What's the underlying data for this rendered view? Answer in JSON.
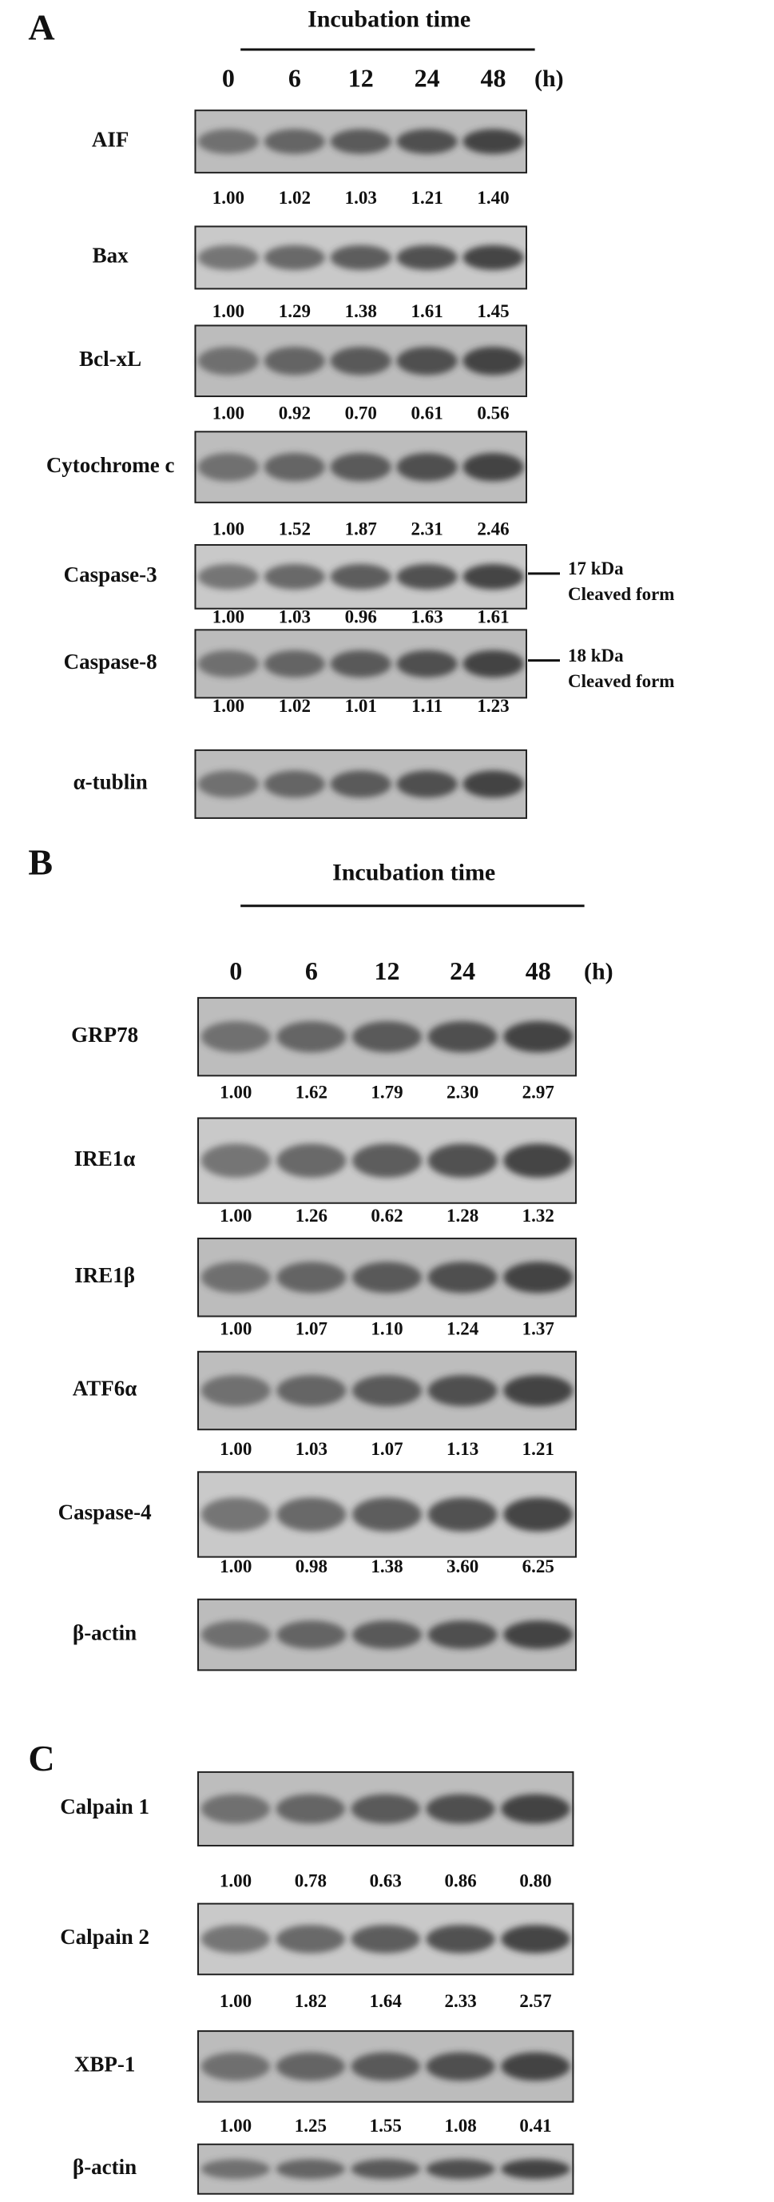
{
  "panels": [
    {
      "letter": "A",
      "title": "Incubation time",
      "lanes": [
        "0",
        "6",
        "12",
        "24",
        "48"
      ],
      "unit": "(h)",
      "blots": [
        {
          "label": "AIF",
          "values": [
            "1.00",
            "1.02",
            "1.03",
            "1.21",
            "1.40"
          ]
        },
        {
          "label": "Bax",
          "values": [
            "1.00",
            "1.29",
            "1.38",
            "1.61",
            "1.45"
          ]
        },
        {
          "label": "Bcl-xL",
          "values": [
            "1.00",
            "0.92",
            "0.70",
            "0.61",
            "0.56"
          ]
        },
        {
          "label": "Cytochrome c",
          "values": [
            "1.00",
            "1.52",
            "1.87",
            "2.31",
            "2.46"
          ]
        },
        {
          "label": "Caspase-3",
          "values": [
            "1.00",
            "1.03",
            "0.96",
            "1.63",
            "1.61"
          ],
          "annotation": [
            "17 kDa",
            "Cleaved form"
          ]
        },
        {
          "label": "Caspase-8",
          "values": [
            "1.00",
            "1.02",
            "1.01",
            "1.11",
            "1.23"
          ],
          "annotation": [
            "18 kDa",
            "Cleaved form"
          ]
        },
        {
          "label": "α-tublin"
        }
      ]
    },
    {
      "letter": "B",
      "title": "Incubation time",
      "lanes": [
        "0",
        "6",
        "12",
        "24",
        "48"
      ],
      "unit": "(h)",
      "blots": [
        {
          "label": "GRP78",
          "values": [
            "1.00",
            "1.62",
            "1.79",
            "2.30",
            "2.97"
          ]
        },
        {
          "label": "IRE1α",
          "values": [
            "1.00",
            "1.26",
            "0.62",
            "1.28",
            "1.32"
          ]
        },
        {
          "label": "IRE1β",
          "values": [
            "1.00",
            "1.07",
            "1.10",
            "1.24",
            "1.37"
          ]
        },
        {
          "label": "ATF6α",
          "values": [
            "1.00",
            "1.03",
            "1.07",
            "1.13",
            "1.21"
          ]
        },
        {
          "label": "Caspase-4",
          "values": [
            "1.00",
            "0.98",
            "1.38",
            "3.60",
            "6.25"
          ]
        },
        {
          "label": "β-actin"
        }
      ]
    },
    {
      "letter": "C",
      "blots": [
        {
          "label": "Calpain 1",
          "values": [
            "1.00",
            "0.78",
            "0.63",
            "0.86",
            "0.80"
          ]
        },
        {
          "label": "Calpain 2",
          "values": [
            "1.00",
            "1.82",
            "1.64",
            "2.33",
            "2.57"
          ]
        },
        {
          "label": "XBP-1",
          "values": [
            "1.00",
            "1.25",
            "1.55",
            "1.08",
            "0.41"
          ]
        },
        {
          "label": "β-actin"
        }
      ]
    }
  ]
}
